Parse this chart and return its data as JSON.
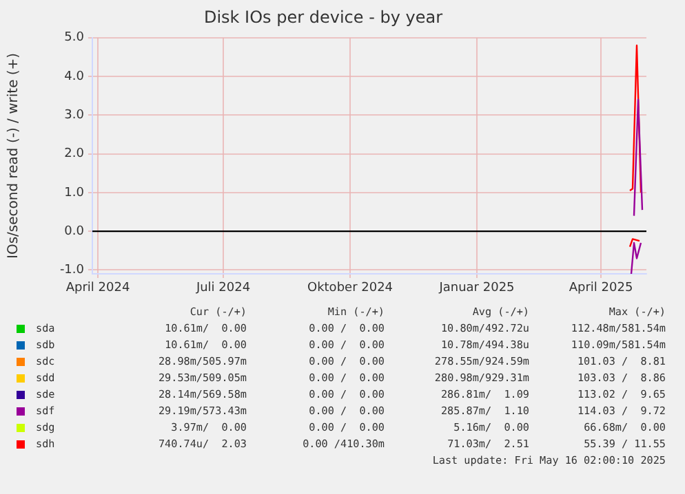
{
  "chart_data": {
    "type": "line",
    "title": "Disk IOs per device - by year",
    "ylabel": "IOs/second read (-) / write (+)",
    "xlim": [
      "2024-03-28",
      "2025-05-04"
    ],
    "xticks": [
      {
        "value": "2024-04-01",
        "label": "April 2024"
      },
      {
        "value": "2024-07-01",
        "label": "Juli 2024"
      },
      {
        "value": "2024-10-01",
        "label": "Oktober 2024"
      },
      {
        "value": "2025-01-01",
        "label": "Januar 2025"
      },
      {
        "value": "2025-04-01",
        "label": "April 2025"
      }
    ],
    "ylim": [
      -1.1,
      5.0
    ],
    "yticks": [
      {
        "value": -1,
        "label": "-1.0"
      },
      {
        "value": 0,
        "label": "0.0"
      },
      {
        "value": 1,
        "label": "1.0"
      },
      {
        "value": 2,
        "label": "2.0"
      },
      {
        "value": 3,
        "label": "3.0"
      },
      {
        "value": 4,
        "label": "4.0"
      },
      {
        "value": 5,
        "label": "5.0"
      }
    ],
    "grid": true,
    "marker": "none",
    "line_style": "solid",
    "legend": "bottom",
    "ref_lines": [
      {
        "axis": "y",
        "value": 0,
        "color": "#000000"
      }
    ],
    "series": [
      {
        "name": "sda",
        "color": "#00cc00"
      },
      {
        "name": "sdb",
        "color": "#0066b3"
      },
      {
        "name": "sdc",
        "color": "#ff8000"
      },
      {
        "name": "sdd",
        "color": "#ffcc00"
      },
      {
        "name": "sde",
        "color": "#330099"
      },
      {
        "name": "sdf",
        "color": "#990099",
        "x": [
          "2025-04-25",
          "2025-04-28",
          "2025-05-01"
        ],
        "values": [
          0.4,
          3.4,
          0.55
        ]
      },
      {
        "name": "sdg",
        "color": "#ccff00"
      },
      {
        "name": "sdh",
        "color": "#ff0000",
        "x": [
          "2025-04-22",
          "2025-04-24",
          "2025-04-27",
          "2025-04-30"
        ],
        "values": [
          1.05,
          1.1,
          4.8,
          1.0
        ]
      },
      {
        "color": "#990099",
        "x": [
          "2025-04-23",
          "2025-04-25",
          "2025-04-27",
          "2025-04-30"
        ],
        "values": [
          -1.1,
          -0.3,
          -0.7,
          -0.3
        ]
      },
      {
        "color": "#ff0000",
        "x": [
          "2025-04-22",
          "2025-04-24",
          "2025-04-29"
        ],
        "values": [
          -0.4,
          -0.2,
          -0.25
        ]
      }
    ],
    "annotations": [
      "Cur (-/+)",
      "Min (-/+)",
      "Avg (-/+)",
      "Max (-/+)",
      "10.61m/  0.00",
      "0.00 /  0.00",
      "10.80m/492.72u",
      "112.48m/581.54m",
      "10.61m/  0.00",
      "0.00 /  0.00",
      "10.78m/494.38u",
      "110.09m/581.54m",
      "28.98m/505.97m",
      "0.00 /  0.00",
      "278.55m/924.59m",
      "101.03 /  8.81",
      "29.53m/509.05m",
      "0.00 /  0.00",
      "280.98m/929.31m",
      "103.03 /  8.86",
      "28.14m/569.58m",
      "0.00 /  0.00",
      "286.81m/  1.09",
      "113.02 /  9.65",
      "29.19m/573.43m",
      "0.00 /  0.00",
      "285.87m/  1.10",
      "114.03 /  9.72",
      "3.97m/  0.00",
      "0.00 /  0.00",
      "5.16m/  0.00",
      "66.68m/  0.00",
      "740.74u/  2.03",
      "0.00 /410.30m",
      "71.03m/  2.51",
      "55.39 / 11.55",
      "Last update: Fri May 16 02:00:10 2025"
    ]
  }
}
